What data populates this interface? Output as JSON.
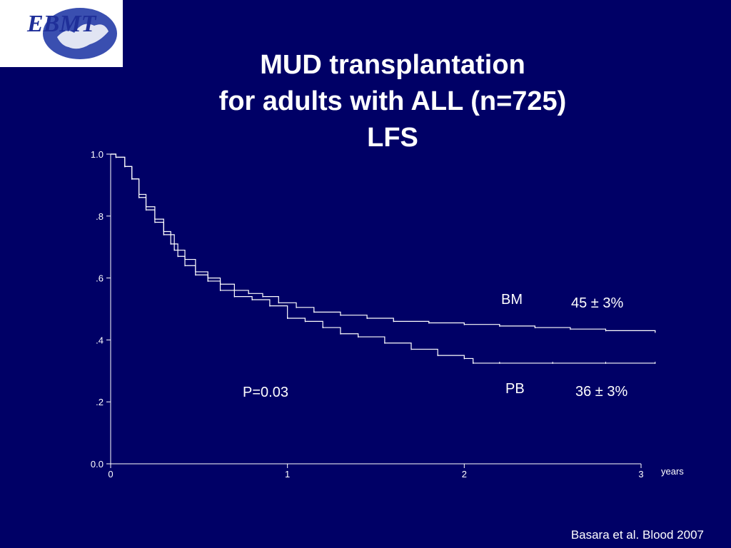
{
  "logo": {
    "text": "EBMT"
  },
  "title": {
    "line1": "MUD transplantation",
    "line2": "for adults with ALL (n=725)",
    "line3": "LFS"
  },
  "chart_data": {
    "type": "line",
    "x_unit_label": "years",
    "xlim": [
      0,
      3
    ],
    "ylim": [
      0,
      1
    ],
    "x_ticks": [
      {
        "v": 0,
        "label": "0"
      },
      {
        "v": 1,
        "label": "1"
      },
      {
        "v": 2,
        "label": "2"
      },
      {
        "v": 3,
        "label": "3"
      }
    ],
    "y_ticks": [
      {
        "v": 0,
        "label": "0.0"
      },
      {
        "v": 0.2,
        "label": ".2"
      },
      {
        "v": 0.4,
        "label": ".4"
      },
      {
        "v": 0.6,
        "label": ".6"
      },
      {
        "v": 0.8,
        "label": ".8"
      },
      {
        "v": 1.0,
        "label": "1.0"
      }
    ],
    "grid": false,
    "series": [
      {
        "name": "BM",
        "estimate": "45 ± 3%",
        "x": [
          0,
          0.03,
          0.08,
          0.12,
          0.16,
          0.2,
          0.25,
          0.3,
          0.36,
          0.42,
          0.48,
          0.55,
          0.62,
          0.7,
          0.78,
          0.86,
          0.95,
          1.05,
          1.15,
          1.3,
          1.45,
          1.6,
          1.8,
          2.0,
          2.2,
          2.4,
          2.6,
          2.8,
          3.08
        ],
        "y": [
          1.0,
          0.99,
          0.96,
          0.92,
          0.87,
          0.83,
          0.79,
          0.74,
          0.69,
          0.66,
          0.62,
          0.6,
          0.58,
          0.56,
          0.55,
          0.54,
          0.52,
          0.505,
          0.49,
          0.48,
          0.47,
          0.46,
          0.455,
          0.45,
          0.445,
          0.44,
          0.435,
          0.43,
          0.425
        ]
      },
      {
        "name": "PB",
        "estimate": "36 ± 3%",
        "x": [
          0,
          0.03,
          0.08,
          0.12,
          0.16,
          0.2,
          0.25,
          0.3,
          0.34,
          0.38,
          0.42,
          0.48,
          0.55,
          0.62,
          0.7,
          0.8,
          0.9,
          1.0,
          1.1,
          1.2,
          1.3,
          1.4,
          1.55,
          1.7,
          1.85,
          2.0,
          2.05,
          2.2,
          2.5,
          2.8,
          3.08
        ],
        "y": [
          1.0,
          0.99,
          0.96,
          0.92,
          0.86,
          0.82,
          0.78,
          0.75,
          0.71,
          0.67,
          0.64,
          0.61,
          0.59,
          0.56,
          0.54,
          0.53,
          0.51,
          0.47,
          0.46,
          0.44,
          0.42,
          0.41,
          0.39,
          0.37,
          0.35,
          0.34,
          0.325,
          0.325,
          0.325,
          0.325,
          0.325
        ]
      }
    ],
    "annotations": {
      "p_value": "P=0.03"
    }
  },
  "citation": "Basara et al. Blood 2007",
  "colors": {
    "background": "#000066",
    "foreground": "#ffffff",
    "logo_blue": "#1f2f99"
  }
}
